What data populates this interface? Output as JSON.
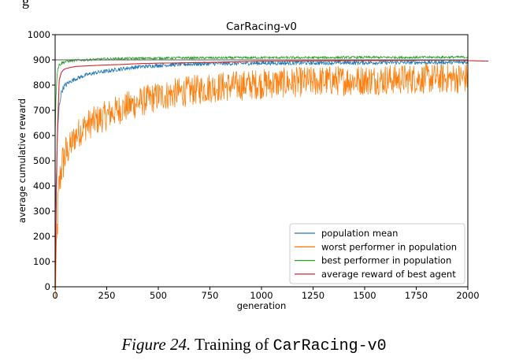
{
  "top_fragment": "g",
  "caption": {
    "figure": "Figure 24.",
    "text": "Training of",
    "code": "CarRacing-v0"
  },
  "chart_data": {
    "type": "line",
    "title": "CarRacing-v0",
    "xlabel": "generation",
    "ylabel": "average cumulative reward",
    "xlim": [
      0,
      2000
    ],
    "ylim": [
      0,
      1000
    ],
    "xticks": [
      0,
      250,
      500,
      750,
      1000,
      1250,
      1500,
      1750,
      2000
    ],
    "yticks": [
      0,
      100,
      200,
      300,
      400,
      500,
      600,
      700,
      800,
      900,
      1000
    ],
    "reference_line": 900,
    "grid": false,
    "legend_position": "lower-right",
    "series": [
      {
        "name": "population mean",
        "color": "#1f77b4",
        "x": [
          0,
          5,
          10,
          15,
          20,
          30,
          40,
          50,
          75,
          100,
          150,
          200,
          250,
          300,
          400,
          500,
          600,
          750,
          1000,
          1250,
          1500,
          1750,
          2000
        ],
        "y": [
          260,
          420,
          560,
          660,
          720,
          770,
          790,
          800,
          815,
          825,
          840,
          850,
          855,
          862,
          872,
          878,
          882,
          885,
          887,
          888,
          889,
          890,
          891
        ],
        "noise": 8
      },
      {
        "name": "worst performer in population",
        "color": "#ff7f0e",
        "x": [
          0,
          5,
          10,
          15,
          20,
          30,
          40,
          50,
          75,
          100,
          150,
          200,
          250,
          300,
          400,
          500,
          600,
          750,
          1000,
          1250,
          1500,
          1750,
          2000
        ],
        "y": [
          -70,
          80,
          220,
          330,
          400,
          470,
          500,
          520,
          560,
          600,
          640,
          660,
          680,
          700,
          730,
          755,
          770,
          790,
          805,
          815,
          820,
          825,
          828
        ],
        "noise": 60
      },
      {
        "name": "best performer in population",
        "color": "#2ca02c",
        "x": [
          0,
          5,
          10,
          15,
          20,
          30,
          40,
          50,
          75,
          100,
          150,
          200,
          250,
          300,
          400,
          500,
          600,
          750,
          1000,
          1250,
          1500,
          1750,
          2000
        ],
        "y": [
          600,
          780,
          850,
          870,
          880,
          887,
          890,
          893,
          896,
          898,
          900,
          902,
          904,
          905,
          906,
          907,
          908,
          908,
          909,
          909,
          910,
          910,
          911
        ],
        "noise": 5
      },
      {
        "name": "average reward of best agent",
        "color": "#d62728",
        "x": [
          0,
          10,
          20,
          30,
          40,
          50,
          75,
          100,
          150,
          200,
          250,
          300,
          400,
          500,
          600,
          750,
          900,
          1000,
          1250,
          1500,
          1750,
          1900,
          2000,
          2050,
          2100
        ],
        "y": [
          0,
          580,
          820,
          850,
          860,
          865,
          870,
          874,
          876,
          878,
          880,
          881,
          885,
          887,
          888,
          890,
          893,
          895,
          896,
          897,
          898,
          899,
          897,
          896,
          895
        ],
        "noise": 0
      }
    ]
  }
}
